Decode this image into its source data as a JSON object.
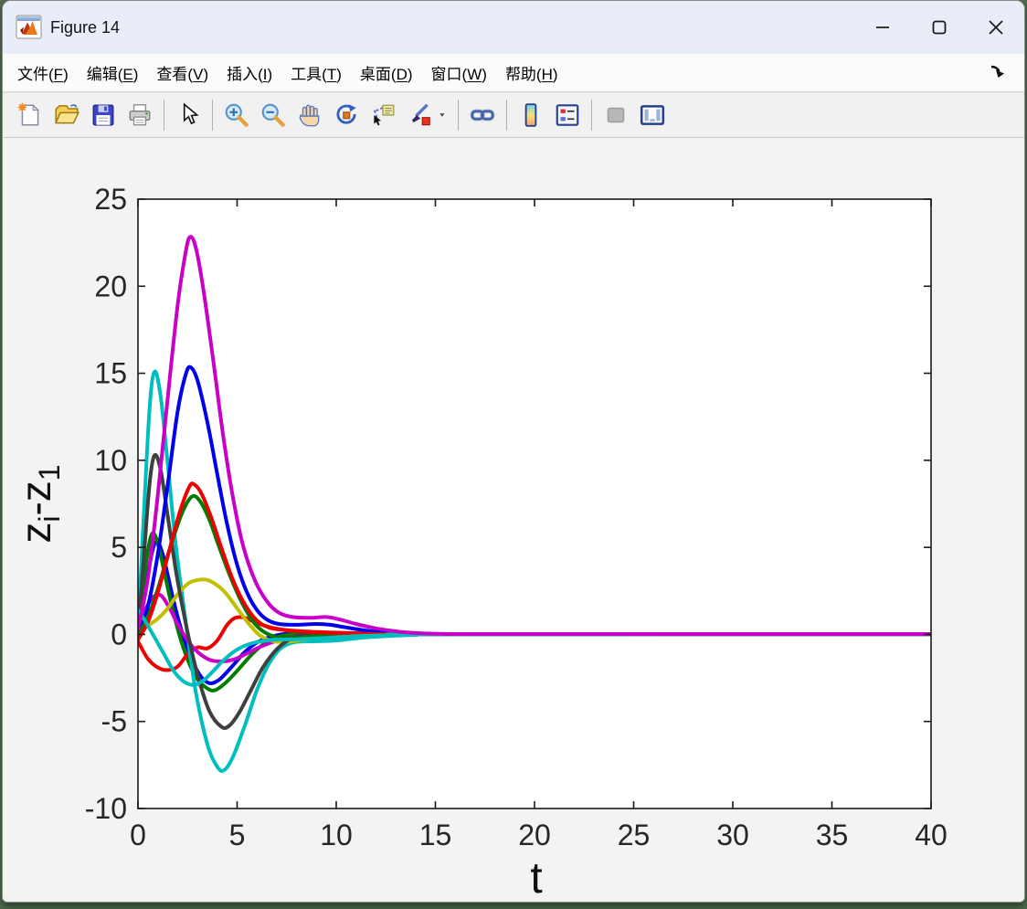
{
  "window": {
    "title": "Figure 14",
    "controls": [
      {
        "name": "minimize",
        "glyph": "minus"
      },
      {
        "name": "maximize",
        "glyph": "square"
      },
      {
        "name": "close",
        "glyph": "cross"
      }
    ]
  },
  "menu": {
    "items": [
      {
        "label": "文件",
        "mnemonic": "F"
      },
      {
        "label": "编辑",
        "mnemonic": "E"
      },
      {
        "label": "查看",
        "mnemonic": "V"
      },
      {
        "label": "插入",
        "mnemonic": "I"
      },
      {
        "label": "工具",
        "mnemonic": "T"
      },
      {
        "label": "桌面",
        "mnemonic": "D"
      },
      {
        "label": "窗口",
        "mnemonic": "W"
      },
      {
        "label": "帮助",
        "mnemonic": "H"
      }
    ],
    "dock_icon": "dock-arrow"
  },
  "toolbar": {
    "items": [
      {
        "name": "new-figure"
      },
      {
        "name": "open-file"
      },
      {
        "name": "save-figure"
      },
      {
        "name": "print-figure"
      },
      {
        "sep": true
      },
      {
        "name": "pointer"
      },
      {
        "sep": true
      },
      {
        "name": "zoom-in"
      },
      {
        "name": "zoom-out"
      },
      {
        "name": "pan"
      },
      {
        "name": "rotate-3d"
      },
      {
        "name": "data-cursor"
      },
      {
        "name": "brush"
      },
      {
        "name": "brush-dropdown",
        "narrow": true
      },
      {
        "sep": true
      },
      {
        "name": "link-plot"
      },
      {
        "sep": true
      },
      {
        "name": "insert-colorbar"
      },
      {
        "name": "insert-legend"
      },
      {
        "sep": true
      },
      {
        "name": "hide-plot-tools",
        "disabled": true
      },
      {
        "name": "show-plot-tools"
      }
    ]
  },
  "chart_data": {
    "type": "line",
    "title": "",
    "xlabel": "t",
    "ylabel": "z_{i}-z_{1}",
    "xlim": [
      0,
      40
    ],
    "ylim": [
      -10,
      25
    ],
    "x_ticks": [
      0,
      5,
      10,
      15,
      20,
      25,
      30,
      35,
      40
    ],
    "y_ticks": [
      -10,
      -5,
      0,
      5,
      10,
      15,
      20,
      25
    ],
    "grid": false,
    "legend_position": "none",
    "line_width": 2,
    "axis_color": "#1a1a1a",
    "tick_label_color": "#262626",
    "plot_bg": "#ffffff",
    "series": [
      {
        "name": "blue-a",
        "color": "#0000EC",
        "points": [
          [
            0,
            0
          ],
          [
            0.4,
            2.8
          ],
          [
            0.75,
            4.9
          ],
          [
            1.0,
            5.3
          ],
          [
            1.3,
            4.4
          ],
          [
            1.7,
            2.4
          ],
          [
            2.1,
            0.6
          ],
          [
            2.6,
            -1.1
          ],
          [
            3.1,
            -2.3
          ],
          [
            3.6,
            -2.8
          ],
          [
            4.1,
            -2.6
          ],
          [
            4.7,
            -1.9
          ],
          [
            5.4,
            -1.0
          ],
          [
            6.1,
            -0.4
          ],
          [
            7,
            -0.05
          ],
          [
            8,
            0.1
          ],
          [
            9,
            0.1
          ],
          [
            10.5,
            0.05
          ],
          [
            12,
            0.02
          ],
          [
            15,
            0
          ],
          [
            40,
            0
          ]
        ]
      },
      {
        "name": "green-a",
        "color": "#007D00",
        "points": [
          [
            0,
            0
          ],
          [
            0.35,
            3.6
          ],
          [
            0.6,
            5.4
          ],
          [
            0.8,
            5.8
          ],
          [
            1.05,
            5.0
          ],
          [
            1.4,
            3.2
          ],
          [
            1.8,
            1.2
          ],
          [
            2.3,
            -0.8
          ],
          [
            2.9,
            -2.4
          ],
          [
            3.5,
            -3.1
          ],
          [
            3.9,
            -3.2
          ],
          [
            4.4,
            -2.8
          ],
          [
            5.0,
            -2.1
          ],
          [
            5.7,
            -1.2
          ],
          [
            6.4,
            -0.5
          ],
          [
            7.2,
            -0.1
          ],
          [
            8.2,
            0.05
          ],
          [
            10,
            0.05
          ],
          [
            12,
            0.02
          ],
          [
            15,
            0
          ],
          [
            40,
            0
          ]
        ]
      },
      {
        "name": "red-a",
        "color": "#EE0000",
        "points": [
          [
            0,
            -0.4
          ],
          [
            0.5,
            -1.4
          ],
          [
            1.0,
            -1.9
          ],
          [
            1.5,
            -2.05
          ],
          [
            2.0,
            -1.85
          ],
          [
            2.5,
            -1.15
          ],
          [
            3.0,
            -0.75
          ],
          [
            3.5,
            -0.8
          ],
          [
            4.0,
            -0.35
          ],
          [
            4.5,
            0.55
          ],
          [
            4.9,
            0.95
          ],
          [
            5.4,
            0.95
          ],
          [
            6.0,
            0.65
          ],
          [
            6.7,
            0.4
          ],
          [
            7.5,
            0.25
          ],
          [
            8.5,
            0.17
          ],
          [
            10,
            0.1
          ],
          [
            12,
            0.05
          ],
          [
            14,
            0.02
          ],
          [
            16,
            0
          ],
          [
            40,
            0
          ]
        ]
      },
      {
        "name": "cyan-a",
        "color": "#00BEBE",
        "points": [
          [
            0,
            0.1
          ],
          [
            0.3,
            7
          ],
          [
            0.6,
            13.2
          ],
          [
            0.85,
            15.1
          ],
          [
            1.15,
            13.6
          ],
          [
            1.5,
            9.8
          ],
          [
            1.9,
            5.2
          ],
          [
            2.4,
            0.8
          ],
          [
            2.9,
            -3.2
          ],
          [
            3.5,
            -6.3
          ],
          [
            4.0,
            -7.6
          ],
          [
            4.35,
            -7.8
          ],
          [
            4.8,
            -7.0
          ],
          [
            5.4,
            -5.2
          ],
          [
            6.0,
            -3.2
          ],
          [
            6.6,
            -1.7
          ],
          [
            7.2,
            -0.8
          ],
          [
            7.9,
            -0.45
          ],
          [
            8.8,
            -0.4
          ],
          [
            10,
            -0.35
          ],
          [
            11.2,
            -0.2
          ],
          [
            12.5,
            -0.1
          ],
          [
            14,
            -0.03
          ],
          [
            16,
            0
          ],
          [
            40,
            0
          ]
        ]
      },
      {
        "name": "magenta-a",
        "color": "#C800C8",
        "points": [
          [
            0,
            0.1
          ],
          [
            0.3,
            1.2
          ],
          [
            0.6,
            1.9
          ],
          [
            0.9,
            2.25
          ],
          [
            1.2,
            2.2
          ],
          [
            1.6,
            1.5
          ],
          [
            2.0,
            0.6
          ],
          [
            2.5,
            -0.35
          ],
          [
            3.0,
            -1.0
          ],
          [
            3.6,
            -1.45
          ],
          [
            4.2,
            -1.55
          ],
          [
            4.8,
            -1.45
          ],
          [
            5.4,
            -1.15
          ],
          [
            6.1,
            -0.75
          ],
          [
            6.9,
            -0.4
          ],
          [
            7.8,
            -0.15
          ],
          [
            9,
            -0.05
          ],
          [
            11,
            0
          ],
          [
            40,
            0
          ]
        ]
      },
      {
        "name": "yellow",
        "color": "#C0C000",
        "points": [
          [
            0,
            0.05
          ],
          [
            0.5,
            0.5
          ],
          [
            1.0,
            0.9
          ],
          [
            1.5,
            1.5
          ],
          [
            2.0,
            2.3
          ],
          [
            2.5,
            2.9
          ],
          [
            2.9,
            3.1
          ],
          [
            3.4,
            3.15
          ],
          [
            3.9,
            2.9
          ],
          [
            4.4,
            2.4
          ],
          [
            5.0,
            1.5
          ],
          [
            5.6,
            0.6
          ],
          [
            6.2,
            -0.1
          ],
          [
            6.9,
            -0.4
          ],
          [
            7.7,
            -0.4
          ],
          [
            8.6,
            -0.25
          ],
          [
            10,
            -0.1
          ],
          [
            12,
            -0.03
          ],
          [
            14,
            0
          ],
          [
            40,
            0
          ]
        ]
      },
      {
        "name": "black",
        "color": "#3F3F3F",
        "points": [
          [
            0,
            0
          ],
          [
            0.3,
            4.5
          ],
          [
            0.6,
            8.8
          ],
          [
            0.85,
            10.3
          ],
          [
            1.15,
            9.4
          ],
          [
            1.5,
            6.8
          ],
          [
            1.95,
            3.4
          ],
          [
            2.45,
            0.4
          ],
          [
            3.0,
            -2.3
          ],
          [
            3.6,
            -4.4
          ],
          [
            4.2,
            -5.3
          ],
          [
            4.6,
            -5.25
          ],
          [
            5.1,
            -4.5
          ],
          [
            5.7,
            -3.2
          ],
          [
            6.3,
            -1.9
          ],
          [
            7.0,
            -0.85
          ],
          [
            7.7,
            -0.25
          ],
          [
            8.5,
            0.05
          ],
          [
            9.5,
            0.1
          ],
          [
            11,
            0.05
          ],
          [
            13,
            0.02
          ],
          [
            15,
            0
          ],
          [
            40,
            0
          ]
        ]
      },
      {
        "name": "blue-b",
        "color": "#0000EC",
        "points": [
          [
            0,
            0
          ],
          [
            0.5,
            1.6
          ],
          [
            1.0,
            4.6
          ],
          [
            1.5,
            8.6
          ],
          [
            2.0,
            12.8
          ],
          [
            2.4,
            14.9
          ],
          [
            2.65,
            15.35
          ],
          [
            3.0,
            14.6
          ],
          [
            3.5,
            12.2
          ],
          [
            4.0,
            9.2
          ],
          [
            4.5,
            6.3
          ],
          [
            5.0,
            4.0
          ],
          [
            5.5,
            2.4
          ],
          [
            6.0,
            1.4
          ],
          [
            6.5,
            0.85
          ],
          [
            7.1,
            0.6
          ],
          [
            8,
            0.55
          ],
          [
            9,
            0.6
          ],
          [
            9.7,
            0.55
          ],
          [
            10.5,
            0.4
          ],
          [
            11.5,
            0.22
          ],
          [
            12.5,
            0.1
          ],
          [
            14,
            0.03
          ],
          [
            16,
            0.01
          ],
          [
            40,
            0
          ]
        ]
      },
      {
        "name": "green-b",
        "color": "#007D00",
        "points": [
          [
            0,
            0
          ],
          [
            0.5,
            1.0
          ],
          [
            1.0,
            2.6
          ],
          [
            1.6,
            4.9
          ],
          [
            2.2,
            6.9
          ],
          [
            2.7,
            7.9
          ],
          [
            3.1,
            7.7
          ],
          [
            3.6,
            6.6
          ],
          [
            4.1,
            5.0
          ],
          [
            4.7,
            3.2
          ],
          [
            5.3,
            1.7
          ],
          [
            5.9,
            0.6
          ],
          [
            6.5,
            0.05
          ],
          [
            7.2,
            -0.2
          ],
          [
            8,
            -0.2
          ],
          [
            9,
            -0.1
          ],
          [
            10.5,
            -0.03
          ],
          [
            12,
            0
          ],
          [
            40,
            0
          ]
        ]
      },
      {
        "name": "red-b",
        "color": "#EE0000",
        "points": [
          [
            0,
            -0.3
          ],
          [
            0.5,
            0.7
          ],
          [
            1.0,
            2.4
          ],
          [
            1.6,
            4.9
          ],
          [
            2.1,
            7.0
          ],
          [
            2.6,
            8.5
          ],
          [
            2.85,
            8.6
          ],
          [
            3.2,
            8.1
          ],
          [
            3.7,
            6.7
          ],
          [
            4.2,
            5.0
          ],
          [
            4.8,
            3.1
          ],
          [
            5.4,
            1.7
          ],
          [
            6.0,
            0.8
          ],
          [
            6.6,
            0.4
          ],
          [
            7.4,
            0.25
          ],
          [
            8.5,
            0.15
          ],
          [
            10,
            0.08
          ],
          [
            12,
            0.03
          ],
          [
            14,
            0.01
          ],
          [
            40,
            0
          ]
        ]
      },
      {
        "name": "cyan-b",
        "color": "#00BEBE",
        "points": [
          [
            0,
            1.4
          ],
          [
            0.4,
            0.7
          ],
          [
            0.8,
            -0.1
          ],
          [
            1.3,
            -1.1
          ],
          [
            1.8,
            -2.1
          ],
          [
            2.3,
            -2.7
          ],
          [
            2.8,
            -2.9
          ],
          [
            3.3,
            -2.65
          ],
          [
            3.8,
            -2.1
          ],
          [
            4.3,
            -1.5
          ],
          [
            4.9,
            -0.95
          ],
          [
            5.5,
            -0.6
          ],
          [
            6.2,
            -0.4
          ],
          [
            7,
            -0.3
          ],
          [
            8,
            -0.28
          ],
          [
            9.5,
            -0.2
          ],
          [
            11,
            -0.1
          ],
          [
            13,
            -0.03
          ],
          [
            15,
            0
          ],
          [
            40,
            0
          ]
        ]
      },
      {
        "name": "magenta-b",
        "color": "#C800C8",
        "points": [
          [
            0,
            0.3
          ],
          [
            0.5,
            3.2
          ],
          [
            1.0,
            8.0
          ],
          [
            1.5,
            13.6
          ],
          [
            2.0,
            18.9
          ],
          [
            2.35,
            21.6
          ],
          [
            2.6,
            22.8
          ],
          [
            2.9,
            22.3
          ],
          [
            3.3,
            19.8
          ],
          [
            3.8,
            15.7
          ],
          [
            4.3,
            11.4
          ],
          [
            4.8,
            7.8
          ],
          [
            5.3,
            5.1
          ],
          [
            5.9,
            3.1
          ],
          [
            6.5,
            1.9
          ],
          [
            7.1,
            1.25
          ],
          [
            7.8,
            1.0
          ],
          [
            8.7,
            0.95
          ],
          [
            9.5,
            1.0
          ],
          [
            10.2,
            0.85
          ],
          [
            11,
            0.6
          ],
          [
            12,
            0.35
          ],
          [
            13,
            0.18
          ],
          [
            14,
            0.08
          ],
          [
            15.5,
            0.03
          ],
          [
            18,
            0.02
          ],
          [
            40,
            0.02
          ]
        ]
      }
    ]
  }
}
